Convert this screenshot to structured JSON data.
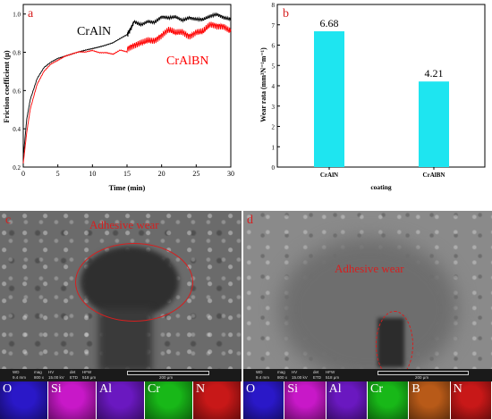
{
  "chart_data": [
    {
      "type": "line",
      "panel_letter": "a",
      "xlabel": "Time (min)",
      "ylabel": "Friction coefficient (μ)",
      "xlim": [
        0,
        30
      ],
      "ylim": [
        0.2,
        1.05
      ],
      "xticks": [
        "0",
        "5",
        "10",
        "15",
        "20",
        "25",
        "30"
      ],
      "yticks": [
        "0.2",
        "0.4",
        "0.6",
        "0.8",
        "1.0"
      ],
      "series": [
        {
          "name": "CrAlN",
          "color": "#000000",
          "x": [
            0,
            0.5,
            1,
            2,
            3,
            4,
            5,
            6,
            7,
            8,
            9,
            10,
            11,
            12,
            13,
            14,
            15,
            15.5,
            16,
            17,
            18,
            19,
            20,
            21,
            22,
            23,
            24,
            25,
            26,
            27,
            28,
            29,
            30
          ],
          "y": [
            0.25,
            0.45,
            0.55,
            0.66,
            0.72,
            0.75,
            0.77,
            0.78,
            0.79,
            0.8,
            0.81,
            0.82,
            0.83,
            0.84,
            0.85,
            0.87,
            0.89,
            0.92,
            0.96,
            0.95,
            0.97,
            0.96,
            0.98,
            0.97,
            0.98,
            0.97,
            0.99,
            0.98,
            0.97,
            0.98,
            0.99,
            0.98,
            0.98
          ]
        },
        {
          "name": "CrAlBN",
          "color": "#ff0000",
          "x": [
            0,
            0.5,
            1,
            2,
            3,
            4,
            5,
            6,
            7,
            8,
            9,
            10,
            11,
            12,
            13,
            14,
            15,
            16,
            17,
            18,
            19,
            20,
            21,
            22,
            23,
            24,
            25,
            26,
            27,
            28,
            29,
            30
          ],
          "y": [
            0.22,
            0.38,
            0.5,
            0.63,
            0.7,
            0.74,
            0.76,
            0.78,
            0.79,
            0.8,
            0.8,
            0.81,
            0.8,
            0.8,
            0.79,
            0.81,
            0.8,
            0.83,
            0.86,
            0.88,
            0.87,
            0.88,
            0.9,
            0.89,
            0.91,
            0.9,
            0.92,
            0.91,
            0.93,
            0.92,
            0.93,
            0.92
          ]
        }
      ]
    },
    {
      "type": "bar",
      "panel_letter": "b",
      "categories": [
        "CrAlN",
        "CrAlBN"
      ],
      "values": [
        6.68,
        4.21
      ],
      "value_labels": [
        "6.68",
        "4.21"
      ],
      "xlabel": "coating",
      "ylabel": "Wear rata (mm³N⁻¹m⁻¹)",
      "ylim": [
        0,
        8
      ],
      "yticks": [
        "0",
        "1",
        "2",
        "3",
        "4",
        "5",
        "6",
        "7",
        "8"
      ],
      "bar_color": "#1ee5f0"
    }
  ],
  "micrographs": [
    {
      "panel_letter": "c",
      "label": "Adhesive wear",
      "info_headers": [
        "WD",
        "mag",
        "HV",
        "det",
        "HFW"
      ],
      "info_values": [
        "9.4 mm",
        "800 x",
        "15.00 kV",
        "ETD",
        "518 μm"
      ],
      "scale_text": "200 μm",
      "edx": [
        {
          "el": "O",
          "color": "#2a18c8"
        },
        {
          "el": "Si",
          "color": "#c818c8"
        },
        {
          "el": "Al",
          "color": "#6a18c0"
        },
        {
          "el": "Cr",
          "color": "#18b818"
        },
        {
          "el": "N",
          "color": "#c81818"
        }
      ]
    },
    {
      "panel_letter": "d",
      "label": "Adhesive wear",
      "info_headers": [
        "WD",
        "mag",
        "HV",
        "det",
        "HFW"
      ],
      "info_values": [
        "9.4 mm",
        "800 x",
        "15.00 kV",
        "ETD",
        "518 μm"
      ],
      "scale_text": "200 μm",
      "edx": [
        {
          "el": "O",
          "color": "#2a18c8"
        },
        {
          "el": "Si",
          "color": "#c818c8"
        },
        {
          "el": "Al",
          "color": "#6a18c0"
        },
        {
          "el": "Cr",
          "color": "#18b818"
        },
        {
          "el": "B",
          "color": "#b85a18"
        },
        {
          "el": "N",
          "color": "#c81818"
        }
      ]
    }
  ]
}
